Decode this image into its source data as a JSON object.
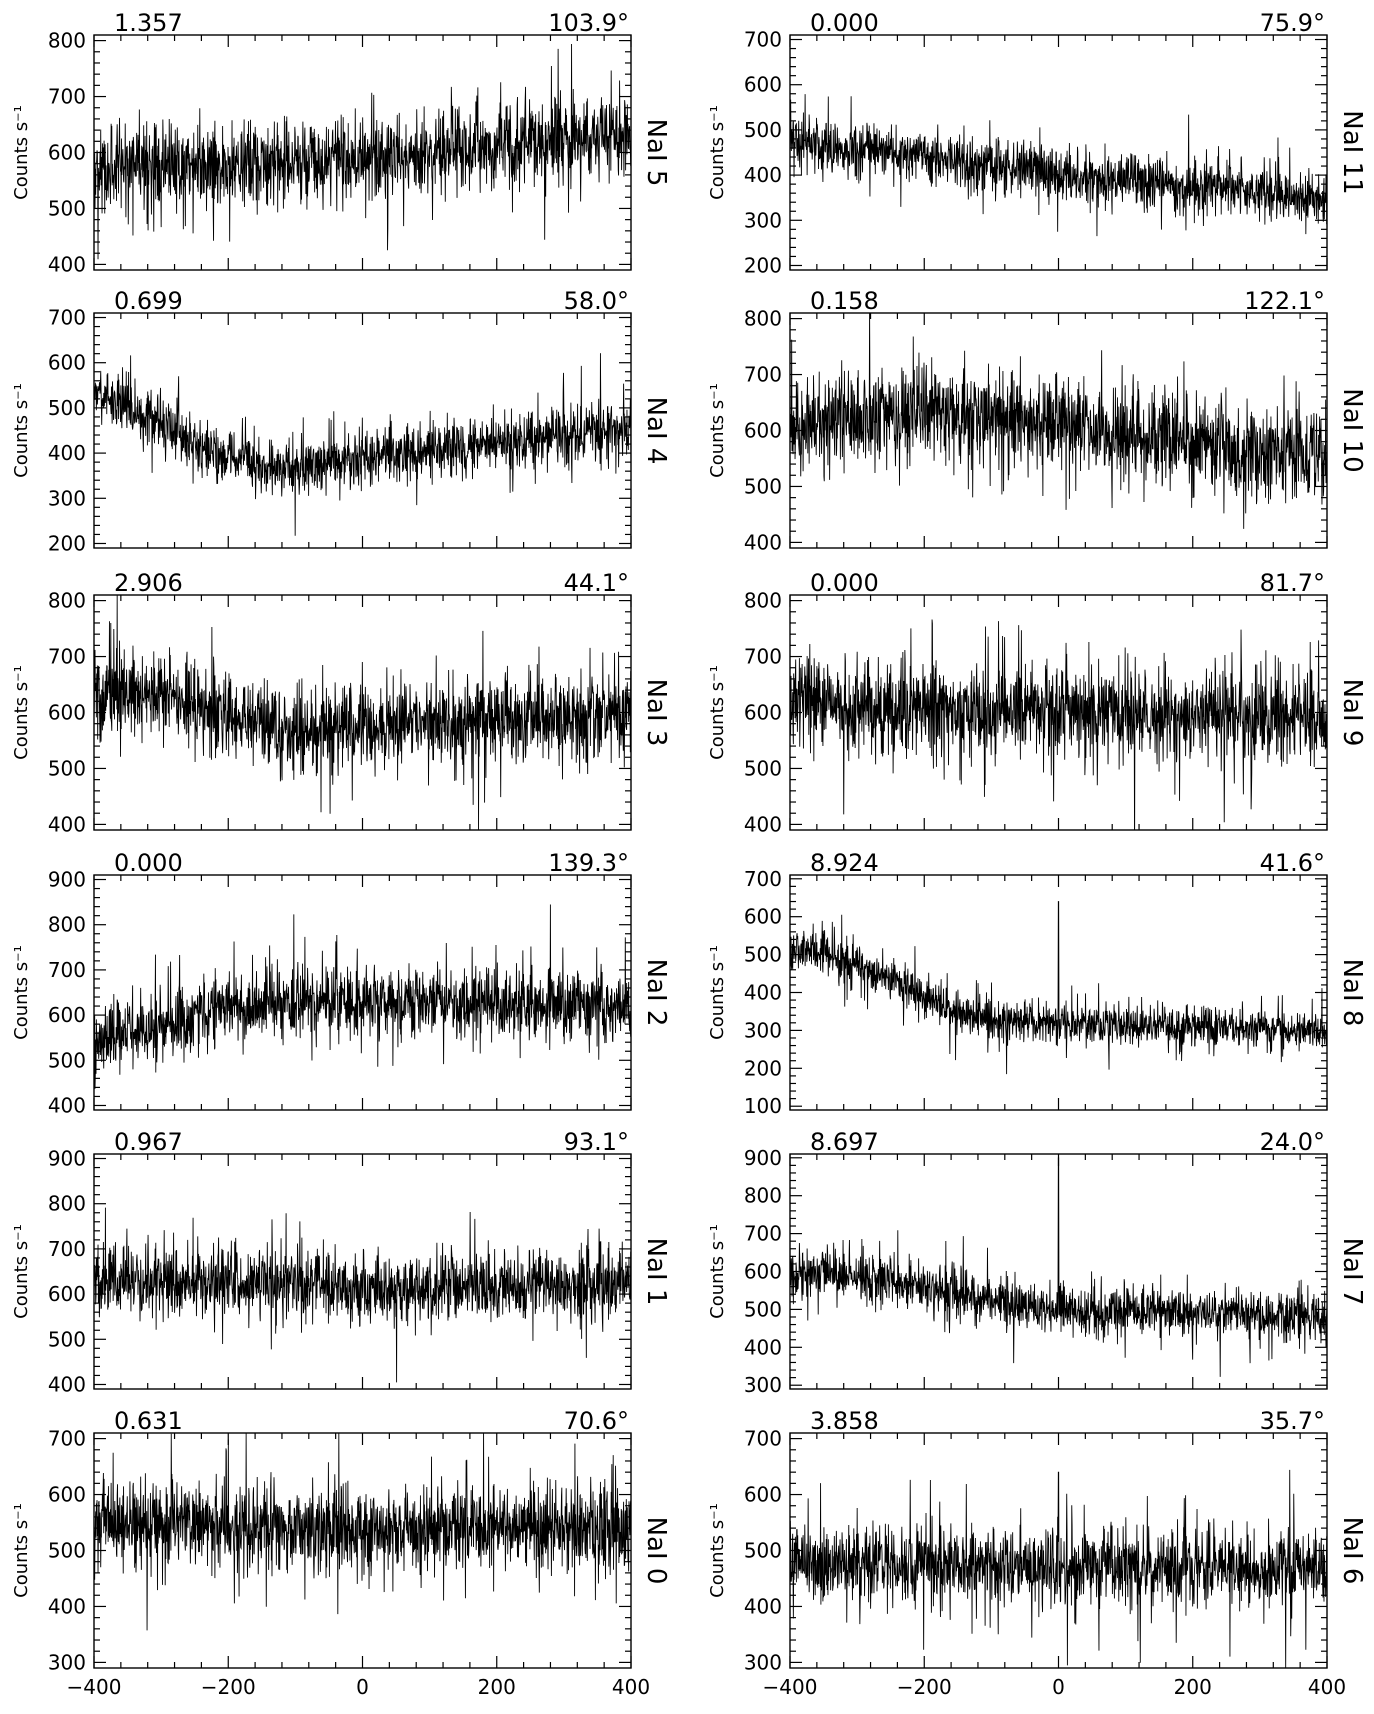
{
  "chart_data": [
    {
      "type": "line",
      "detector": "NaI 5",
      "significance": "1.357",
      "angle": "103.9°",
      "ylim": [
        390,
        810
      ],
      "yticks": [
        400,
        500,
        600,
        700,
        800
      ],
      "xlim": [
        -400,
        400
      ],
      "ylabel": "Counts s⁻¹",
      "trend": [
        [
          -400,
          575
        ],
        [
          -300,
          570
        ],
        [
          -200,
          575
        ],
        [
          -100,
          580
        ],
        [
          0,
          590
        ],
        [
          100,
          600
        ],
        [
          200,
          610
        ],
        [
          300,
          620
        ],
        [
          400,
          630
        ]
      ],
      "noise": 38,
      "outlier_p": 0.04,
      "outlier_amp": 80
    },
    {
      "type": "line",
      "detector": "NaI 4",
      "significance": "0.699",
      "angle": "58.0°",
      "ylim": [
        190,
        710
      ],
      "yticks": [
        200,
        300,
        400,
        500,
        600,
        700
      ],
      "xlim": [
        -400,
        400
      ],
      "ylabel": "Counts s⁻¹",
      "trend": [
        [
          -400,
          540
        ],
        [
          -350,
          500
        ],
        [
          -300,
          470
        ],
        [
          -250,
          420
        ],
        [
          -200,
          390
        ],
        [
          -150,
          370
        ],
        [
          -100,
          370
        ],
        [
          -50,
          380
        ],
        [
          0,
          390
        ],
        [
          100,
          410
        ],
        [
          200,
          420
        ],
        [
          300,
          440
        ],
        [
          400,
          460
        ]
      ],
      "noise": 30,
      "outlier_p": 0.04,
      "outlier_amp": 70
    },
    {
      "type": "line",
      "detector": "NaI 3",
      "significance": "2.906",
      "angle": "44.1°",
      "ylim": [
        390,
        810
      ],
      "yticks": [
        400,
        500,
        600,
        700,
        800
      ],
      "xlim": [
        -400,
        400
      ],
      "ylabel": "Counts s⁻¹",
      "trend": [
        [
          -400,
          640
        ],
        [
          -300,
          630
        ],
        [
          -200,
          600
        ],
        [
          -150,
          575
        ],
        [
          -100,
          565
        ],
        [
          0,
          575
        ],
        [
          100,
          580
        ],
        [
          200,
          590
        ],
        [
          300,
          590
        ],
        [
          400,
          600
        ]
      ],
      "noise": 38,
      "outlier_p": 0.04,
      "outlier_amp": 80
    },
    {
      "type": "line",
      "detector": "NaI 2",
      "significance": "0.000",
      "angle": "139.3°",
      "ylim": [
        390,
        910
      ],
      "yticks": [
        400,
        500,
        600,
        700,
        800,
        900
      ],
      "xlim": [
        -400,
        400
      ],
      "ylabel": "Counts s⁻¹",
      "trend": [
        [
          -400,
          530
        ],
        [
          -350,
          560
        ],
        [
          -300,
          580
        ],
        [
          -250,
          600
        ],
        [
          -200,
          620
        ],
        [
          -100,
          630
        ],
        [
          0,
          630
        ],
        [
          100,
          630
        ],
        [
          200,
          625
        ],
        [
          300,
          620
        ],
        [
          400,
          620
        ]
      ],
      "noise": 38,
      "outlier_p": 0.04,
      "outlier_amp": 80
    },
    {
      "type": "line",
      "detector": "NaI 1",
      "significance": "0.967",
      "angle": "93.1°",
      "ylim": [
        390,
        910
      ],
      "yticks": [
        400,
        500,
        600,
        700,
        800,
        900
      ],
      "xlim": [
        -400,
        400
      ],
      "ylabel": "Counts s⁻¹",
      "trend": [
        [
          -400,
          630
        ],
        [
          -200,
          625
        ],
        [
          0,
          615
        ],
        [
          200,
          620
        ],
        [
          400,
          620
        ]
      ],
      "noise": 38,
      "outlier_p": 0.04,
      "outlier_amp": 80
    },
    {
      "type": "line",
      "detector": "NaI 0",
      "significance": "0.631",
      "angle": "70.6°",
      "ylim": [
        290,
        710
      ],
      "yticks": [
        300,
        400,
        500,
        600,
        700
      ],
      "xlim": [
        -400,
        400
      ],
      "ylabel": "Counts s⁻¹",
      "trend": [
        [
          -400,
          545
        ],
        [
          -200,
          545
        ],
        [
          0,
          540
        ],
        [
          200,
          540
        ],
        [
          400,
          540
        ]
      ],
      "noise": 38,
      "outlier_p": 0.04,
      "outlier_amp": 80
    },
    {
      "type": "line",
      "detector": "NaI 11",
      "significance": "0.000",
      "angle": "75.9°",
      "ylim": [
        190,
        710
      ],
      "yticks": [
        200,
        300,
        400,
        500,
        600,
        700
      ],
      "xlim": [
        -400,
        400
      ],
      "ylabel": "Counts s⁻¹",
      "trend": [
        [
          -400,
          470
        ],
        [
          -300,
          460
        ],
        [
          -200,
          440
        ],
        [
          -100,
          420
        ],
        [
          0,
          400
        ],
        [
          100,
          390
        ],
        [
          200,
          375
        ],
        [
          300,
          360
        ],
        [
          400,
          345
        ]
      ],
      "noise": 30,
      "outlier_p": 0.04,
      "outlier_amp": 70
    },
    {
      "type": "line",
      "detector": "NaI 10",
      "significance": "0.158",
      "angle": "122.1°",
      "ylim": [
        390,
        810
      ],
      "yticks": [
        400,
        500,
        600,
        700,
        800
      ],
      "xlim": [
        -400,
        400
      ],
      "ylabel": "Counts s⁻¹",
      "trend": [
        [
          -400,
          610
        ],
        [
          -300,
          620
        ],
        [
          -200,
          630
        ],
        [
          -100,
          620
        ],
        [
          0,
          605
        ],
        [
          100,
          590
        ],
        [
          200,
          580
        ],
        [
          300,
          565
        ],
        [
          400,
          560
        ]
      ],
      "noise": 42,
      "outlier_p": 0.04,
      "outlier_amp": 90
    },
    {
      "type": "line",
      "detector": "NaI 9",
      "significance": "0.000",
      "angle": "81.7°",
      "ylim": [
        390,
        810
      ],
      "yticks": [
        400,
        500,
        600,
        700,
        800
      ],
      "xlim": [
        -400,
        400
      ],
      "ylabel": "Counts s⁻¹",
      "trend": [
        [
          -400,
          620
        ],
        [
          -200,
          605
        ],
        [
          0,
          600
        ],
        [
          200,
          595
        ],
        [
          400,
          590
        ]
      ],
      "noise": 40,
      "outlier_p": 0.04,
      "outlier_amp": 85
    },
    {
      "type": "line",
      "detector": "NaI 8",
      "significance": "8.924",
      "angle": "41.6°",
      "ylim": [
        90,
        710
      ],
      "yticks": [
        100,
        200,
        300,
        400,
        500,
        600,
        700
      ],
      "xlim": [
        -400,
        400
      ],
      "ylabel": "Counts s⁻¹",
      "trend": [
        [
          -400,
          520
        ],
        [
          -350,
          500
        ],
        [
          -300,
          470
        ],
        [
          -250,
          430
        ],
        [
          -200,
          390
        ],
        [
          -150,
          345
        ],
        [
          -100,
          330
        ],
        [
          0,
          320
        ],
        [
          100,
          315
        ],
        [
          200,
          310
        ],
        [
          300,
          305
        ],
        [
          400,
          300
        ]
      ],
      "noise": 26,
      "outlier_p": 0.04,
      "outlier_amp": 60,
      "spikes": [
        [
          0,
          640
        ]
      ]
    },
    {
      "type": "line",
      "detector": "NaI 7",
      "significance": "8.697",
      "angle": "24.0°",
      "ylim": [
        290,
        910
      ],
      "yticks": [
        300,
        400,
        500,
        600,
        700,
        800,
        900
      ],
      "xlim": [
        -400,
        400
      ],
      "ylabel": "Counts s⁻¹",
      "trend": [
        [
          -400,
          600
        ],
        [
          -300,
          590
        ],
        [
          -200,
          560
        ],
        [
          -100,
          520
        ],
        [
          0,
          500
        ],
        [
          100,
          495
        ],
        [
          200,
          490
        ],
        [
          300,
          485
        ],
        [
          400,
          480
        ]
      ],
      "noise": 32,
      "outlier_p": 0.04,
      "outlier_amp": 70,
      "spikes": [
        [
          0,
          900
        ]
      ]
    },
    {
      "type": "line",
      "detector": "NaI 6",
      "significance": "3.858",
      "angle": "35.7°",
      "ylim": [
        290,
        710
      ],
      "yticks": [
        300,
        400,
        500,
        600,
        700
      ],
      "xlim": [
        -400,
        400
      ],
      "ylabel": "Counts s⁻¹",
      "trend": [
        [
          -400,
          480
        ],
        [
          -200,
          475
        ],
        [
          0,
          470
        ],
        [
          200,
          468
        ],
        [
          400,
          470
        ]
      ],
      "noise": 34,
      "outlier_p": 0.04,
      "outlier_amp": 80,
      "spikes": [
        [
          0,
          640
        ]
      ]
    }
  ],
  "xticks": [
    -400,
    -200,
    0,
    200,
    400
  ],
  "xtick_labels": [
    "−400",
    "−200",
    "0",
    "200",
    "400"
  ]
}
